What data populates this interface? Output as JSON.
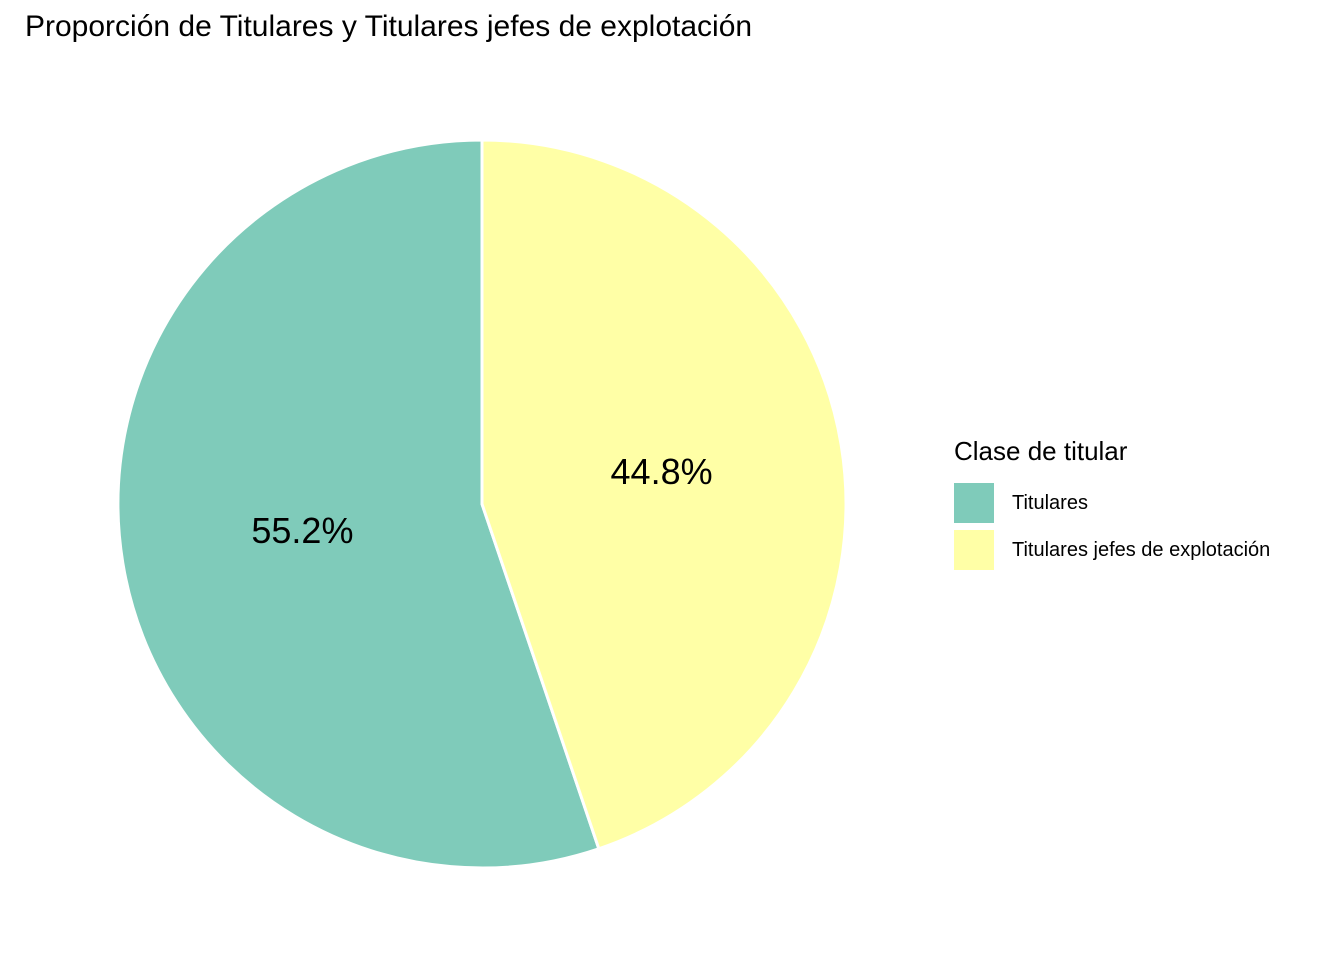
{
  "chart_data": {
    "type": "pie",
    "title": "Proporción de Titulares y Titulares jefes de explotación",
    "legend_title": "Clase de titular",
    "legend_position": "right",
    "slices": [
      {
        "name": "Titulares",
        "value": 55.2,
        "label": "55.2%",
        "color": "#7FCBBA"
      },
      {
        "name": "Titulares jefes de explotación",
        "value": 44.8,
        "label": "44.8%",
        "color": "#FFFFA6"
      }
    ]
  }
}
